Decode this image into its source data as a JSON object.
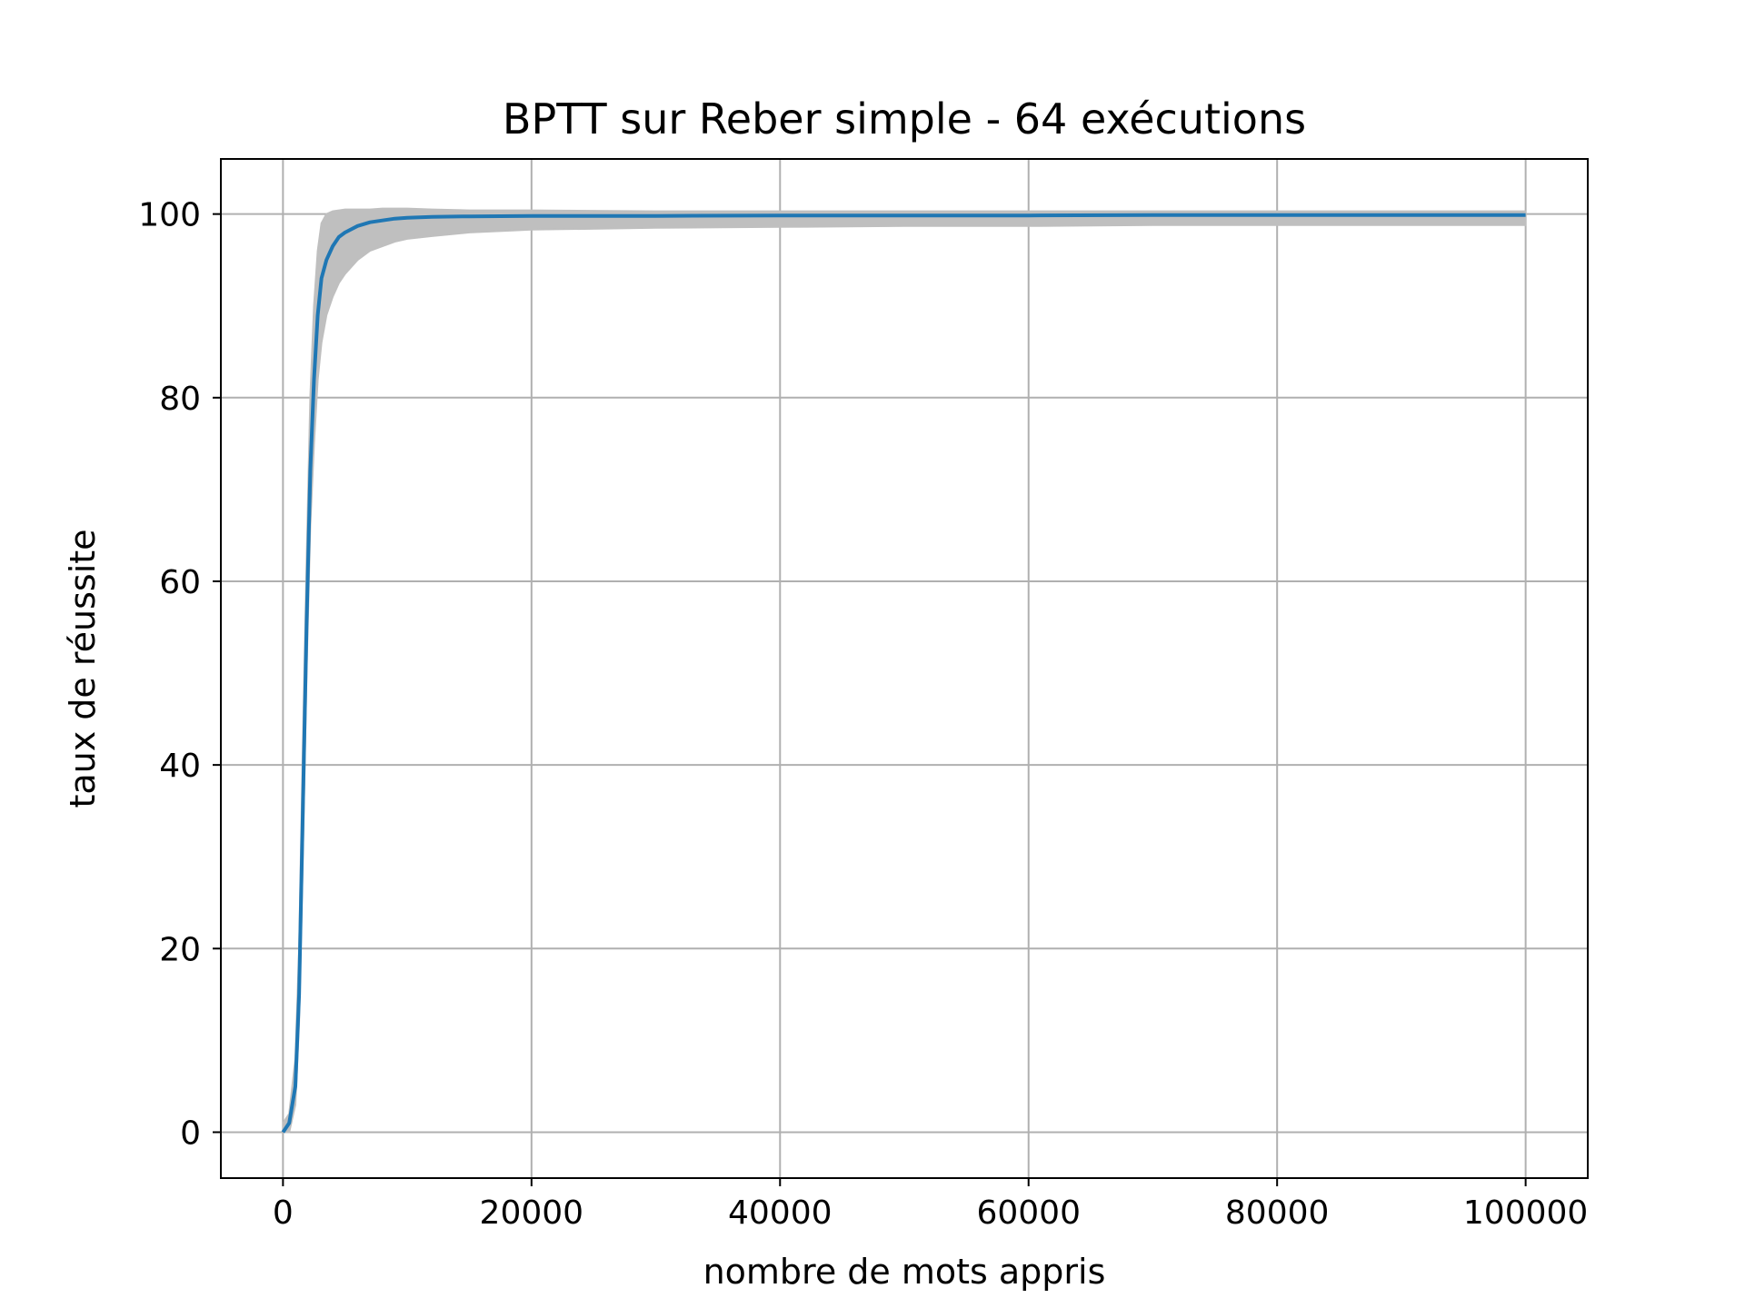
{
  "chart_data": {
    "type": "line",
    "title": "BPTT sur Reber simple - 64 exécutions",
    "xlabel": "nombre de mots appris",
    "ylabel": "taux de réussite",
    "xlim": [
      -5000,
      105000
    ],
    "ylim": [
      -5,
      106
    ],
    "xticks": [
      0,
      20000,
      40000,
      60000,
      80000,
      100000
    ],
    "yticks": [
      0,
      20,
      40,
      60,
      80,
      100
    ],
    "grid": true,
    "colors": {
      "mean": "#1f77b4",
      "band": "#bfbfbf",
      "grid": "#b0b0b0"
    },
    "series": [
      {
        "role": "mean",
        "x": [
          0,
          500,
          1000,
          1300,
          1600,
          1900,
          2200,
          2500,
          2800,
          3100,
          3500,
          4000,
          4500,
          5000,
          6000,
          7000,
          8000,
          9000,
          10000,
          12000,
          15000,
          20000,
          30000,
          40000,
          50000,
          60000,
          70000,
          80000,
          90000,
          100000
        ],
        "y": [
          0,
          1,
          5,
          15,
          35,
          55,
          72,
          82,
          89,
          93,
          95,
          96.5,
          97.5,
          98,
          98.7,
          99.1,
          99.3,
          99.5,
          99.6,
          99.7,
          99.75,
          99.8,
          99.8,
          99.85,
          99.85,
          99.85,
          99.9,
          99.9,
          99.9,
          99.9
        ]
      },
      {
        "role": "band",
        "x": [
          0,
          500,
          1000,
          1300,
          1600,
          1900,
          2200,
          2500,
          2800,
          3100,
          3500,
          4000,
          4500,
          5000,
          6000,
          7000,
          8000,
          9000,
          10000,
          12000,
          15000,
          20000,
          30000,
          40000,
          50000,
          60000,
          70000,
          80000,
          90000,
          100000
        ],
        "lower": [
          0,
          0,
          3,
          12,
          30,
          50,
          66,
          75,
          82,
          86,
          89,
          91,
          92.5,
          93.5,
          95,
          96,
          96.5,
          97,
          97.3,
          97.6,
          98,
          98.3,
          98.5,
          98.6,
          98.7,
          98.7,
          98.8,
          98.8,
          98.8,
          98.8
        ],
        "upper": [
          1,
          2,
          8,
          20,
          42,
          62,
          80,
          90,
          96,
          99,
          100,
          100.3,
          100.4,
          100.5,
          100.5,
          100.5,
          100.6,
          100.6,
          100.6,
          100.5,
          100.4,
          100.4,
          100.3,
          100.3,
          100.3,
          100.3,
          100.3,
          100.3,
          100.3,
          100.3
        ]
      }
    ]
  }
}
